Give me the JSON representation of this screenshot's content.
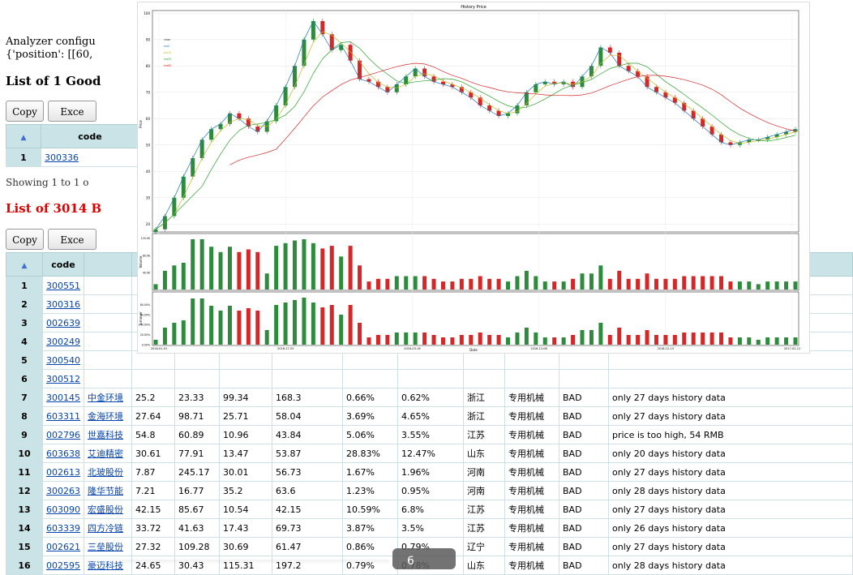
{
  "analyzer": {
    "config_line": "Analyzer configu",
    "position_line": "{'position': [[60,"
  },
  "good": {
    "heading": "List of 1 Good",
    "copy": "Copy",
    "excel": "Exce",
    "code_header": "code",
    "rows": [
      {
        "idx": "1",
        "code": "300336"
      }
    ],
    "showing": "Showing 1 to 1 o"
  },
  "bad": {
    "heading": "List of 3014 B",
    "copy": "Copy",
    "excel": "Exce",
    "code_header": "code",
    "top_rows": [
      {
        "idx": "1",
        "code": "300551"
      },
      {
        "idx": "2",
        "code": "300316"
      },
      {
        "idx": "3",
        "code": "002639"
      },
      {
        "idx": "4",
        "code": "300249"
      },
      {
        "idx": "5",
        "code": "300540"
      },
      {
        "idx": "6",
        "code": "300512"
      }
    ],
    "rows": [
      {
        "idx": "7",
        "code": "300145",
        "name": "中金环境",
        "c1": "25.2",
        "c2": "23.33",
        "c3": "99.34",
        "c4": "168.3",
        "p1": "0.66%",
        "p2": "0.62%",
        "prov": "浙江",
        "ind": "专用机械",
        "status": "BAD",
        "reason": "only 27 days history data"
      },
      {
        "idx": "8",
        "code": "603311",
        "name": "金海环境",
        "c1": "27.64",
        "c2": "98.71",
        "c3": "25.71",
        "c4": "58.04",
        "p1": "3.69%",
        "p2": "4.65%",
        "prov": "浙江",
        "ind": "专用机械",
        "status": "BAD",
        "reason": "only 27 days history data"
      },
      {
        "idx": "9",
        "code": "002796",
        "name": "世嘉科技",
        "c1": "54.8",
        "c2": "60.89",
        "c3": "10.96",
        "c4": "43.84",
        "p1": "5.06%",
        "p2": "3.55%",
        "prov": "江苏",
        "ind": "专用机械",
        "status": "BAD",
        "reason": "price is too high, 54 RMB"
      },
      {
        "idx": "10",
        "code": "603638",
        "name": "艾迪精密",
        "c1": "30.61",
        "c2": "77.91",
        "c3": "13.47",
        "c4": "53.87",
        "p1": "28.83%",
        "p2": "12.47%",
        "prov": "山东",
        "ind": "专用机械",
        "status": "BAD",
        "reason": "only 20 days history data"
      },
      {
        "idx": "11",
        "code": "002613",
        "name": "北玻股份",
        "c1": "7.87",
        "c2": "245.17",
        "c3": "30.01",
        "c4": "56.73",
        "p1": "1.67%",
        "p2": "1.96%",
        "prov": "河南",
        "ind": "专用机械",
        "status": "BAD",
        "reason": "only 27 days history data"
      },
      {
        "idx": "12",
        "code": "300263",
        "name": "隆华节能",
        "c1": "7.21",
        "c2": "16.77",
        "c3": "35.2",
        "c4": "63.6",
        "p1": "1.23%",
        "p2": "0.95%",
        "prov": "河南",
        "ind": "专用机械",
        "status": "BAD",
        "reason": "only 28 days history data"
      },
      {
        "idx": "13",
        "code": "603090",
        "name": "宏盛股份",
        "c1": "42.15",
        "c2": "85.67",
        "c3": "10.54",
        "c4": "42.15",
        "p1": "10.59%",
        "p2": "6.8%",
        "prov": "江苏",
        "ind": "专用机械",
        "status": "BAD",
        "reason": "only 27 days history data"
      },
      {
        "idx": "14",
        "code": "603339",
        "name": "四方冷链",
        "c1": "33.72",
        "c2": "41.63",
        "c3": "17.43",
        "c4": "69.73",
        "p1": "3.87%",
        "p2": "3.5%",
        "prov": "江苏",
        "ind": "专用机械",
        "status": "BAD",
        "reason": "only 26 days history data"
      },
      {
        "idx": "15",
        "code": "002621",
        "name": "三垒股份",
        "c1": "27.32",
        "c2": "109.28",
        "c3": "30.69",
        "c4": "61.47",
        "p1": "0.86%",
        "p2": "0.79%",
        "prov": "辽宁",
        "ind": "专用机械",
        "status": "BAD",
        "reason": "only 27 days history data"
      },
      {
        "idx": "16",
        "code": "002595",
        "name": "豪迈科技",
        "c1": "24.65",
        "c2": "30.43",
        "c3": "115.31",
        "c4": "197.2",
        "p1": "0.79%",
        "p2": "0.78%",
        "prov": "山东",
        "ind": "专用机械",
        "status": "BAD",
        "reason": "only 28 days history data"
      }
    ]
  },
  "overlay": {
    "label": "6"
  },
  "chart_data": {
    "type": "line",
    "title": "History Price",
    "xlabel": "Date",
    "x_ticks": [
      "2016-01-01",
      "2016-17-03",
      "2016-03-16",
      "2016-13-06",
      "2016-12-13",
      "2017-02-12"
    ],
    "panels": [
      {
        "name": "price",
        "ylabel": "Price",
        "yticks": [
          "20",
          "30",
          "40",
          "50",
          "60",
          "70",
          "80",
          "90",
          "100"
        ],
        "ylim": [
          17,
          101
        ],
        "legend": [
          "close",
          "ma5",
          "ma10",
          "ma20",
          "ma60"
        ],
        "series_colors": [
          "#1f77b4",
          "#bcbd22",
          "#2ca02c",
          "#d62728"
        ],
        "candle_up": "#2e8b3d",
        "candle_down": "#d62728",
        "close": [
          18,
          23,
          30,
          38,
          45,
          52,
          56,
          58,
          62,
          60,
          57,
          55,
          59,
          65,
          72,
          80,
          90,
          97,
          92,
          86,
          88,
          82,
          75,
          74,
          72,
          70,
          73,
          76,
          79,
          76,
          74,
          73,
          72,
          70,
          68,
          65,
          63,
          61,
          62,
          65,
          70,
          73,
          74,
          73,
          74,
          72,
          76,
          80,
          87,
          85,
          80,
          78,
          76,
          72,
          70,
          68,
          66,
          63,
          60,
          57,
          54,
          51,
          50,
          51,
          52,
          52,
          53,
          54,
          55,
          56
        ]
      },
      {
        "name": "volume",
        "ylabel": "Volume",
        "yticks": [
          "40.0K",
          "80.0K",
          "120.0K"
        ],
        "ylim": [
          0,
          125
        ]
      },
      {
        "name": "turnover",
        "ylabel": "Turnover",
        "yticks": [
          "0.00%",
          "20.00%",
          "40.00%",
          "60.00%",
          "80.00%"
        ],
        "ylim": [
          0,
          100
        ]
      }
    ]
  }
}
